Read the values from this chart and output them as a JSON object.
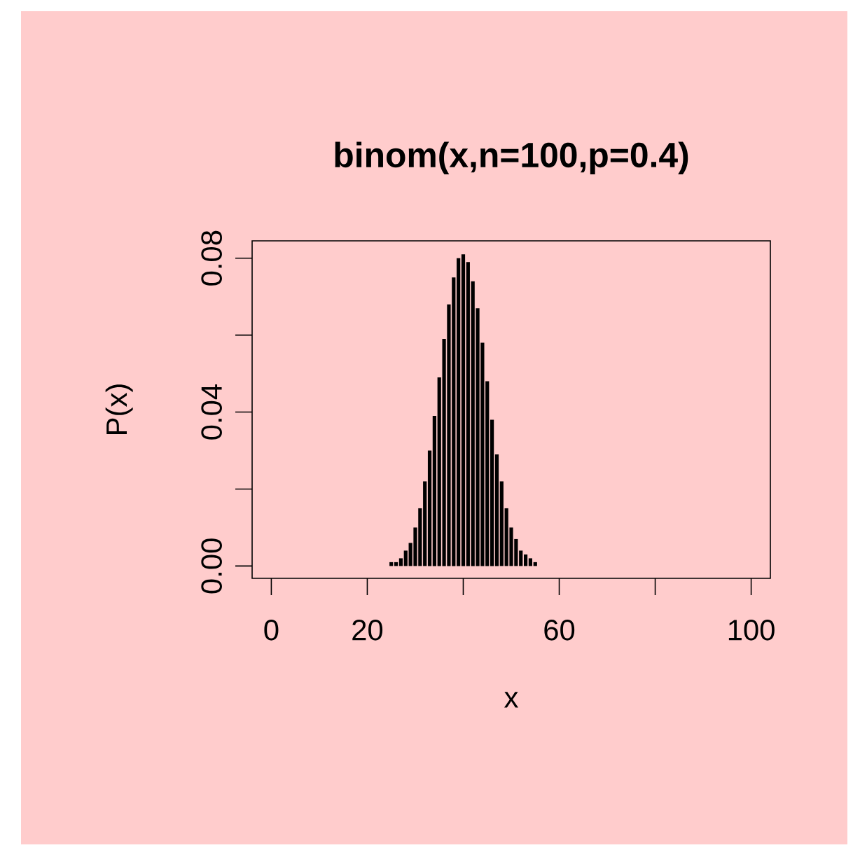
{
  "chart_data": {
    "type": "bar",
    "title": "binom(x,n=100,p=0.4)",
    "xlabel": "x",
    "ylabel": "P(x)",
    "x": [
      0,
      1,
      2,
      3,
      4,
      5,
      6,
      7,
      8,
      9,
      10,
      11,
      12,
      13,
      14,
      15,
      16,
      17,
      18,
      19,
      20,
      21,
      22,
      23,
      24,
      25,
      26,
      27,
      28,
      29,
      30,
      31,
      32,
      33,
      34,
      35,
      36,
      37,
      38,
      39,
      40,
      41,
      42,
      43,
      44,
      45,
      46,
      47,
      48,
      49,
      50,
      51,
      52,
      53,
      54,
      55,
      56,
      57,
      58,
      59,
      60,
      61,
      62,
      63,
      64,
      65,
      66,
      67,
      68,
      69,
      70,
      71,
      72,
      73,
      74,
      75,
      76,
      77,
      78,
      79,
      80,
      81,
      82,
      83,
      84,
      85,
      86,
      87,
      88,
      89,
      90,
      91,
      92,
      93,
      94,
      95,
      96,
      97,
      98,
      99,
      100
    ],
    "values": [
      0,
      0,
      0,
      0,
      0,
      0,
      0,
      0,
      0,
      0,
      0,
      0,
      0,
      0,
      0,
      0,
      0,
      0,
      0,
      0,
      0,
      0,
      0,
      0,
      0,
      0.001,
      0.001,
      0.002,
      0.004,
      0.006,
      0.01,
      0.015,
      0.022,
      0.03,
      0.039,
      0.049,
      0.059,
      0.068,
      0.075,
      0.08,
      0.081,
      0.079,
      0.074,
      0.067,
      0.058,
      0.048,
      0.038,
      0.029,
      0.022,
      0.015,
      0.01,
      0.007,
      0.004,
      0.003,
      0.002,
      0.001,
      0,
      0,
      0,
      0,
      0,
      0,
      0,
      0,
      0,
      0,
      0,
      0,
      0,
      0,
      0,
      0,
      0,
      0,
      0,
      0,
      0,
      0,
      0,
      0,
      0,
      0,
      0,
      0,
      0,
      0,
      0,
      0,
      0,
      0,
      0,
      0,
      0,
      0,
      0,
      0,
      0,
      0,
      0,
      0,
      0
    ],
    "color": "#000000",
    "xlim": [
      -4,
      104
    ],
    "ylim": [
      -0.0032,
      0.0845
    ],
    "xticks": [
      0,
      20,
      {
        "value": 40,
        "label": null
      },
      60,
      {
        "value": 80,
        "label": null
      },
      100
    ],
    "yticks": [
      {
        "value": 0,
        "label": "0.00"
      },
      {
        "value": 0.02,
        "label": null
      },
      {
        "value": 0.04,
        "label": "0.04"
      },
      {
        "value": 0.06,
        "label": null
      },
      {
        "value": 0.08,
        "label": "0.08"
      }
    ]
  }
}
